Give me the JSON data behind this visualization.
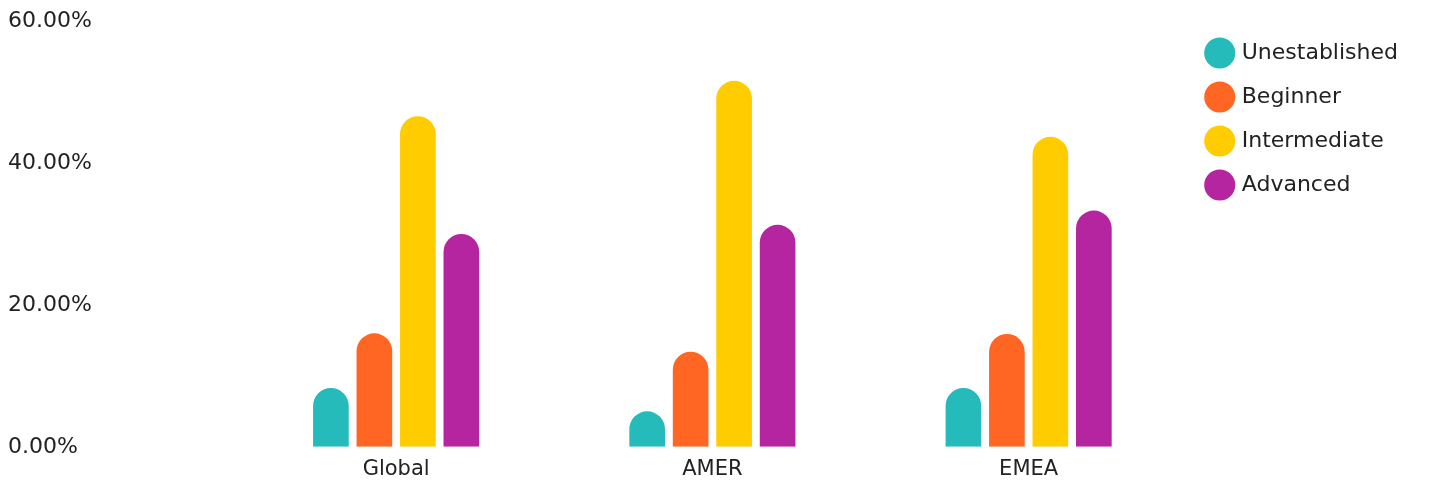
{
  "chart_data": {
    "type": "bar",
    "categories": [
      "Global",
      "AMER",
      "EMEA"
    ],
    "series": [
      {
        "name": "Unestablished",
        "color": "#26bbbb",
        "values": [
          8.3,
          5,
          8.3
        ]
      },
      {
        "name": "Beginner",
        "color": "#ff6623",
        "values": [
          16,
          13.4,
          15.9
        ]
      },
      {
        "name": "Intermediate",
        "color": "#ffcc00",
        "values": [
          46.6,
          51.6,
          43.7
        ]
      },
      {
        "name": "Advanced",
        "color": "#b5259f",
        "values": [
          30,
          31.3,
          33.3
        ]
      }
    ],
    "ylim": [
      0,
      60
    ],
    "yticks": [
      {
        "value": 0,
        "label": "0.00%"
      },
      {
        "value": 20,
        "label": "20.00%"
      },
      {
        "value": 40,
        "label": "40.00%"
      },
      {
        "value": 60,
        "label": "60.00%"
      }
    ],
    "grid": false,
    "legend": "top right"
  }
}
